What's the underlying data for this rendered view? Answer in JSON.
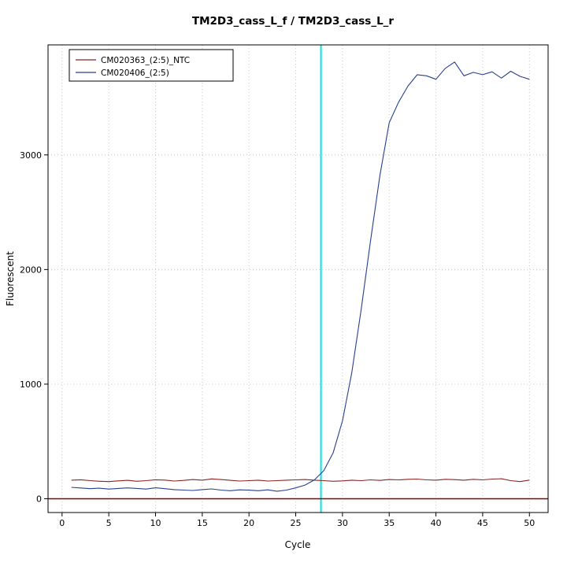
{
  "title": "TM2D3_cass_L_f / TM2D3_cass_L_r",
  "chart_data": {
    "type": "line",
    "title": "TM2D3_cass_L_f / TM2D3_cass_L_r",
    "xlabel": "Cycle",
    "ylabel": "Fluorescent",
    "xlim": [
      0,
      50
    ],
    "ylim": [
      0,
      3900
    ],
    "xticks": [
      0,
      5,
      10,
      15,
      20,
      25,
      30,
      35,
      40,
      45,
      50
    ],
    "yticks": [
      0,
      1000,
      2000,
      3000
    ],
    "grid": "dotted",
    "grid_color": "#c8c8c8",
    "legend_position": "top-left",
    "threshold_cycle_line": {
      "x": 27.7,
      "color": "#00e5e5"
    },
    "baseline": {
      "y": 0,
      "color": "#8b0000"
    },
    "x": [
      1,
      2,
      3,
      4,
      5,
      6,
      7,
      8,
      9,
      10,
      11,
      12,
      13,
      14,
      15,
      16,
      17,
      18,
      19,
      20,
      21,
      22,
      23,
      24,
      25,
      26,
      27,
      28,
      29,
      30,
      31,
      32,
      33,
      34,
      35,
      36,
      37,
      38,
      39,
      40,
      41,
      42,
      43,
      44,
      45,
      46,
      47,
      48,
      49,
      50
    ],
    "series": [
      {
        "name": "CM020363_(2:5)_NTC",
        "color": "#8b2323",
        "values": [
          162,
          166,
          158,
          153,
          150,
          156,
          161,
          153,
          158,
          166,
          163,
          155,
          160,
          168,
          162,
          173,
          168,
          161,
          155,
          158,
          162,
          155,
          158,
          162,
          165,
          168,
          162,
          158,
          153,
          156,
          162,
          158,
          165,
          160,
          168,
          165,
          170,
          172,
          165,
          162,
          170,
          167,
          162,
          170,
          165,
          172,
          175,
          158,
          150,
          163
        ]
      },
      {
        "name": "CM020406_(2:5)",
        "color": "#27408b",
        "values": [
          100,
          94,
          88,
          92,
          85,
          90,
          95,
          90,
          85,
          96,
          88,
          80,
          76,
          72,
          80,
          86,
          76,
          70,
          78,
          75,
          70,
          78,
          66,
          76,
          95,
          120,
          165,
          245,
          400,
          680,
          1100,
          1650,
          2250,
          2820,
          3280,
          3460,
          3600,
          3700,
          3690,
          3660,
          3755,
          3810,
          3690,
          3720,
          3700,
          3725,
          3670,
          3730,
          3685,
          3660
        ]
      }
    ]
  }
}
